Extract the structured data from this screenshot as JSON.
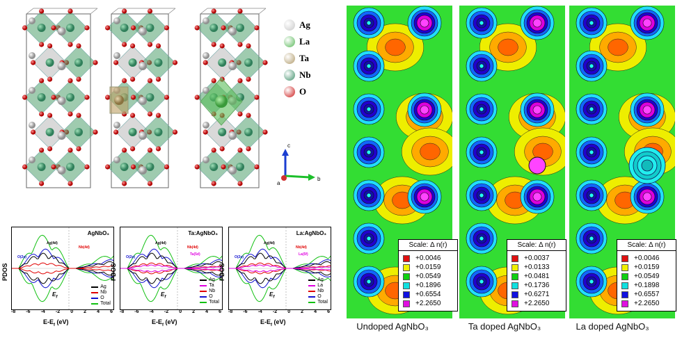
{
  "structure_legend": [
    {
      "label": "Ag",
      "color": "#c8c8c8"
    },
    {
      "label": "La",
      "color": "#58b858"
    },
    {
      "label": "Ta",
      "color": "#b09a6a"
    },
    {
      "label": "Nb",
      "color": "#3f8f6a"
    },
    {
      "label": "O",
      "color": "#cc1a1a"
    }
  ],
  "axes_labels": {
    "c": "c",
    "a": "a",
    "b": "b"
  },
  "pdos_panels": [
    {
      "title": "AgNbO₃",
      "legend": [
        "Ag",
        "Nb",
        "O",
        "Total"
      ],
      "ann1": "Ag(4d)",
      "ann2": "O(2p)",
      "ann3": "Nb(4d)"
    },
    {
      "title": "Ta:AgNbO₃",
      "legend": [
        "Ag",
        "Ta",
        "Nb",
        "O",
        "Total"
      ],
      "ann1": "Ag(4d)",
      "ann2": "O(2p)",
      "ann3": "Nb(4d)",
      "ann4": "Ta(5d)"
    },
    {
      "title": "La:AgNbO₃",
      "legend": [
        "Ag",
        "La",
        "Nb",
        "O",
        "Total"
      ],
      "ann1": "Ag(4d)",
      "ann2": "O(2p)",
      "ann3": "Nb(4d)",
      "ann4": "La(5f)"
    }
  ],
  "pdos_common": {
    "ylabel": "PDOS",
    "xlabel": "E-E",
    "xlabel_sub": "f",
    "xlabel_unit": " (eV)",
    "ef_label": "E",
    "ef_sub": "f",
    "ticks": [
      "-8",
      "-6",
      "-4",
      "-2",
      "0",
      "2",
      "4",
      "6"
    ]
  },
  "legend_colors": {
    "Ag": "#000000",
    "Nb": "#e00000",
    "O": "#1010d0",
    "Total": "#10c010",
    "Ta": "#e000e0",
    "La": "#e000e0"
  },
  "maps": [
    {
      "caption": "Undoped AgNbO₃",
      "scale_head": "Scale:   Δ n(r)",
      "scale": [
        "+0.0046",
        "+0.0159",
        "+0.0549",
        "+0.1896",
        "+0.6554",
        "+2.2650"
      ]
    },
    {
      "caption": "Ta doped AgNbO₃",
      "scale_head": "Scale:   Δ n(r)",
      "scale": [
        "+0.0037",
        "+0.0133",
        "+0.0481",
        "+0.1736",
        "+0.6271",
        "+2.2650"
      ]
    },
    {
      "caption": "La doped AgNbO₃",
      "scale_head": "Scale:   Δ n(r)",
      "scale": [
        "+0.0046",
        "+0.0159",
        "+0.0549",
        "+0.1898",
        "+0.6557",
        "+2.2650"
      ]
    }
  ],
  "scale_colors": [
    "#e01010",
    "#f0f000",
    "#10d010",
    "#10e0e0",
    "#1010e0",
    "#e010e0"
  ]
}
